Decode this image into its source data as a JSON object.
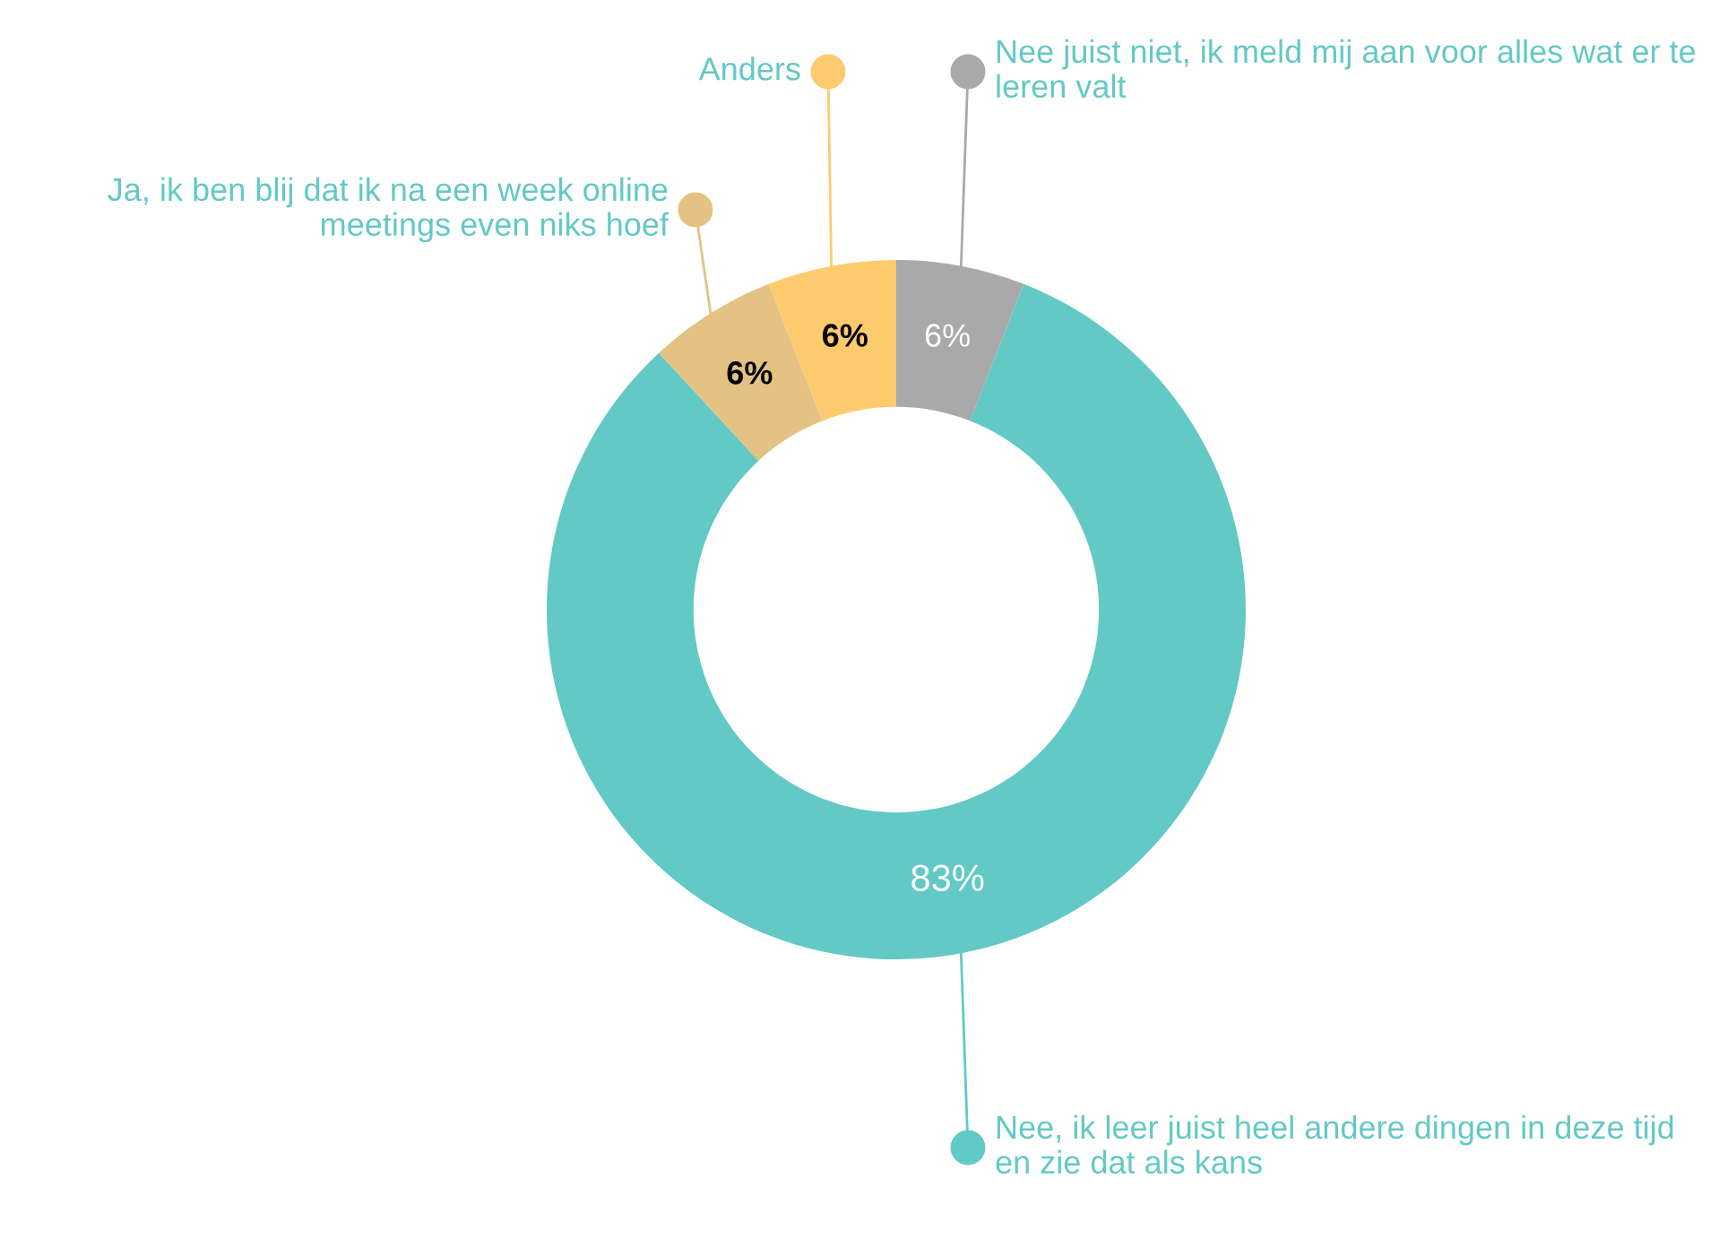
{
  "chart_data": {
    "type": "donut",
    "categories": [
      "Nee juist niet, ik meld mij aan voor alles wat er te leren valt",
      "Nee, ik leer juist heel andere dingen in deze tijd en zie dat als kans",
      "Ja, ik ben blij dat ik na een week online meetings even niks hoef",
      "Anders"
    ],
    "values": [
      6,
      83,
      6,
      6
    ],
    "colors": [
      "#a9a9a9",
      "#62c9c5",
      "#e3c283",
      "#fdcb6e"
    ],
    "value_labels": [
      "6%",
      "83%",
      "6%",
      "6%"
    ],
    "legend": "right"
  }
}
